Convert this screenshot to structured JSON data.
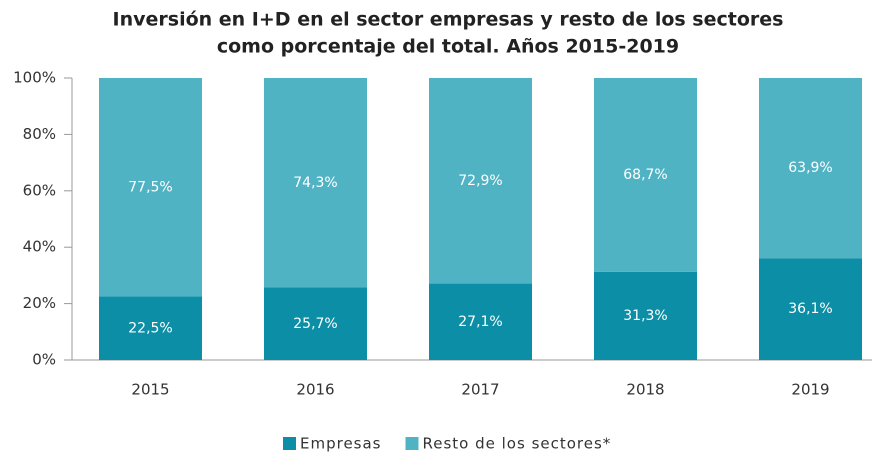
{
  "chart_data": {
    "type": "stacked_bar",
    "title": [
      "Inversión en I+D en el sector empresas y resto de los sectores",
      "como porcentaje del total. Años 2015-2019"
    ],
    "categories": [
      "2015",
      "2016",
      "2017",
      "2018",
      "2019"
    ],
    "series": [
      {
        "name": "Empresas",
        "color": "#0b8ea6",
        "values": [
          22.5,
          25.7,
          27.1,
          31.3,
          36.1
        ],
        "value_labels": [
          "22,5%",
          "25,7%",
          "27,1%",
          "31,3%",
          "36,1%"
        ]
      },
      {
        "name": "Resto de los sectores*",
        "color": "#4fb3c4",
        "values": [
          77.5,
          74.3,
          72.9,
          68.7,
          63.9
        ],
        "value_labels": [
          "77,5%",
          "74,3%",
          "72,9%",
          "68,7%",
          "63,9%"
        ]
      }
    ],
    "ylim": [
      0,
      100
    ],
    "yticks": [
      {
        "value": 0,
        "label": "0%"
      },
      {
        "value": 20,
        "label": "20%"
      },
      {
        "value": 40,
        "label": "40%"
      },
      {
        "value": 60,
        "label": "60%"
      },
      {
        "value": 80,
        "label": "80%"
      },
      {
        "value": 100,
        "label": "100%"
      }
    ],
    "legend": "bottom"
  }
}
